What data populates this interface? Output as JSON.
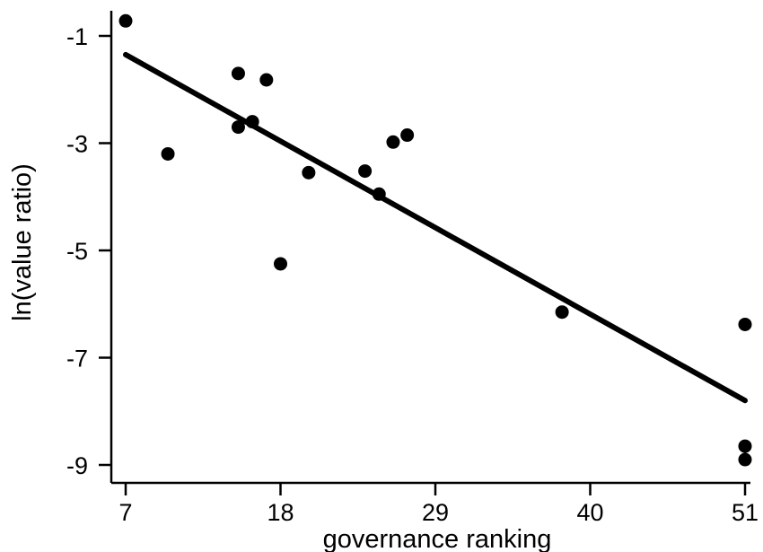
{
  "chart_data": {
    "type": "scatter",
    "title": "",
    "xlabel": "governance ranking",
    "ylabel": "ln(value ratio)",
    "xlim": [
      6,
      51.5
    ],
    "ylim": [
      -9.3,
      -0.4
    ],
    "xticks": [
      7,
      18,
      29,
      40,
      51
    ],
    "yticks": [
      -1,
      -3,
      -5,
      -7,
      -9
    ],
    "grid": false,
    "legend": "none",
    "series": [
      {
        "name": "",
        "points": [
          {
            "x": 7,
            "y": -0.72
          },
          {
            "x": 10,
            "y": -3.2
          },
          {
            "x": 15,
            "y": -1.7
          },
          {
            "x": 15,
            "y": -2.7
          },
          {
            "x": 16,
            "y": -2.6
          },
          {
            "x": 17,
            "y": -1.82
          },
          {
            "x": 18,
            "y": -5.25
          },
          {
            "x": 20,
            "y": -3.55
          },
          {
            "x": 24,
            "y": -3.52
          },
          {
            "x": 25,
            "y": -3.95
          },
          {
            "x": 26,
            "y": -2.98
          },
          {
            "x": 27,
            "y": -2.85
          },
          {
            "x": 38,
            "y": -6.15
          },
          {
            "x": 51,
            "y": -6.38
          },
          {
            "x": 51,
            "y": -8.65
          },
          {
            "x": 51,
            "y": -8.9
          }
        ]
      }
    ],
    "fit_line": {
      "x": [
        7,
        51
      ],
      "y": [
        -1.35,
        -7.8
      ]
    },
    "colors": {
      "points": "#000000",
      "line": "#000000",
      "axis": "#000000"
    }
  }
}
